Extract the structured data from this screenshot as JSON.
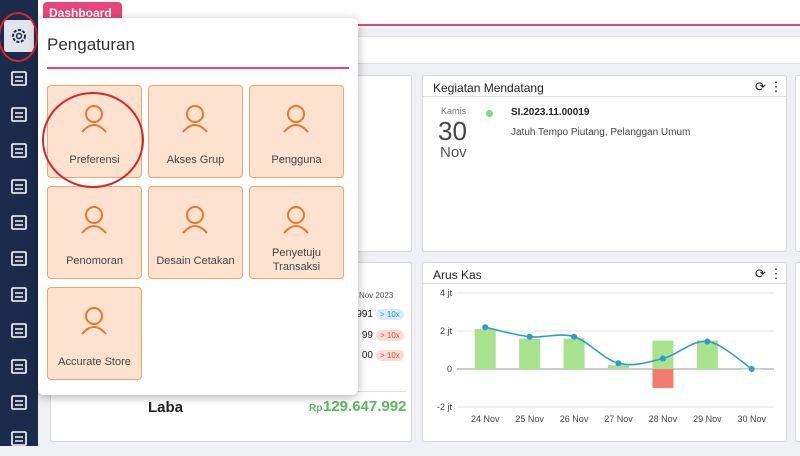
{
  "tab": "Dashboard",
  "menu": {
    "title": "Pengaturan",
    "items": [
      "Preferensi",
      "Akses Grup",
      "Pengguna",
      "Penomoran",
      "Desain Cetakan",
      "Penyetuju Transaksi",
      "Accurate Store"
    ]
  },
  "sales_widget": {
    "period": "Nov 2023",
    "rows": [
      {
        "value": "991",
        "badge": "> 10x"
      },
      {
        "value": "99",
        "badge": "> 10x"
      },
      {
        "value": "00",
        "badge": "> 10x"
      }
    ],
    "profit_label": "Laba",
    "currency": "Rp",
    "profit": "129.647.992"
  },
  "schedule_widget": {
    "title": "Kegiatan Mendatang",
    "day": "Kamis",
    "date": "30",
    "month": "Nov",
    "doc": "SI.2023.11.00019",
    "desc": "Jatuh Tempo Piutang, Pelanggan Umum"
  },
  "chart_data": {
    "type": "bar-line",
    "title": "Arus Kas",
    "categories": [
      "24 Nov",
      "25 Nov",
      "26 Nov",
      "27 Nov",
      "28 Nov",
      "29 Nov",
      "30 Nov"
    ],
    "series": [
      {
        "kind": "bar",
        "color": "#a8e28c",
        "values": [
          2.1,
          1.6,
          1.6,
          0.2,
          1.5,
          1.5,
          0
        ]
      },
      {
        "kind": "bar",
        "color": "#f47c6e",
        "values": [
          null,
          null,
          null,
          null,
          -1.0,
          null,
          null
        ]
      },
      {
        "kind": "line",
        "color": "#2e9bd6",
        "values": [
          2.2,
          1.7,
          1.7,
          0.3,
          0.55,
          1.45,
          0
        ]
      }
    ],
    "ylim": [
      -2.3,
      4.2
    ],
    "yticks": [
      {
        "value": -2,
        "label": "-2 jt"
      },
      0,
      {
        "value": 2,
        "label": "2 jt"
      },
      {
        "value": 4,
        "label": "4 jt"
      }
    ],
    "grid": true
  }
}
